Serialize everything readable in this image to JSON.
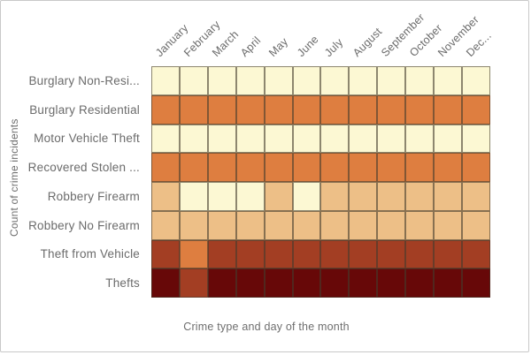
{
  "chart_data": {
    "type": "heatmap",
    "title": "",
    "xlabel": "Crime type and day of the month",
    "ylabel": "Count of crime incidents",
    "x_categories": [
      "January",
      "February",
      "March",
      "April",
      "May",
      "June",
      "July",
      "August",
      "September",
      "October",
      "November",
      "Dec..."
    ],
    "y_categories": [
      "Burglary Non-Resi...",
      "Burglary Residential",
      "Motor Vehicle Theft",
      "Recovered Stolen ...",
      "Robbery Firearm",
      "Robbery No Firearm",
      "Theft from Vehicle",
      "Thefts"
    ],
    "intensity_scale_note": "1 = lowest count (pale yellow) to 5 = highest count (dark red)",
    "palette": {
      "1": "#fcf8d3",
      "2": "#edbf87",
      "3": "#de7e40",
      "4": "#a33e23",
      "5": "#670808"
    },
    "cells": [
      [
        1,
        1,
        1,
        1,
        1,
        1,
        1,
        1,
        1,
        1,
        1,
        1
      ],
      [
        3,
        3,
        3,
        3,
        3,
        3,
        3,
        3,
        3,
        3,
        3,
        3
      ],
      [
        1,
        1,
        1,
        1,
        1,
        1,
        1,
        1,
        1,
        1,
        1,
        1
      ],
      [
        3,
        3,
        3,
        3,
        3,
        3,
        3,
        3,
        3,
        3,
        3,
        3
      ],
      [
        2,
        1,
        1,
        1,
        2,
        1,
        2,
        2,
        2,
        2,
        2,
        2
      ],
      [
        2,
        2,
        2,
        2,
        2,
        2,
        2,
        2,
        2,
        2,
        2,
        2
      ],
      [
        4,
        3,
        4,
        4,
        4,
        4,
        4,
        4,
        4,
        4,
        4,
        4
      ],
      [
        5,
        4,
        5,
        5,
        5,
        5,
        5,
        5,
        5,
        5,
        5,
        5
      ]
    ],
    "legend_position": "none",
    "grid_on": true,
    "grid_line_color": "#84806e",
    "text_color": "#6b6b6b",
    "background_color": "#ffffff",
    "border_color": "#c9c9c9"
  }
}
